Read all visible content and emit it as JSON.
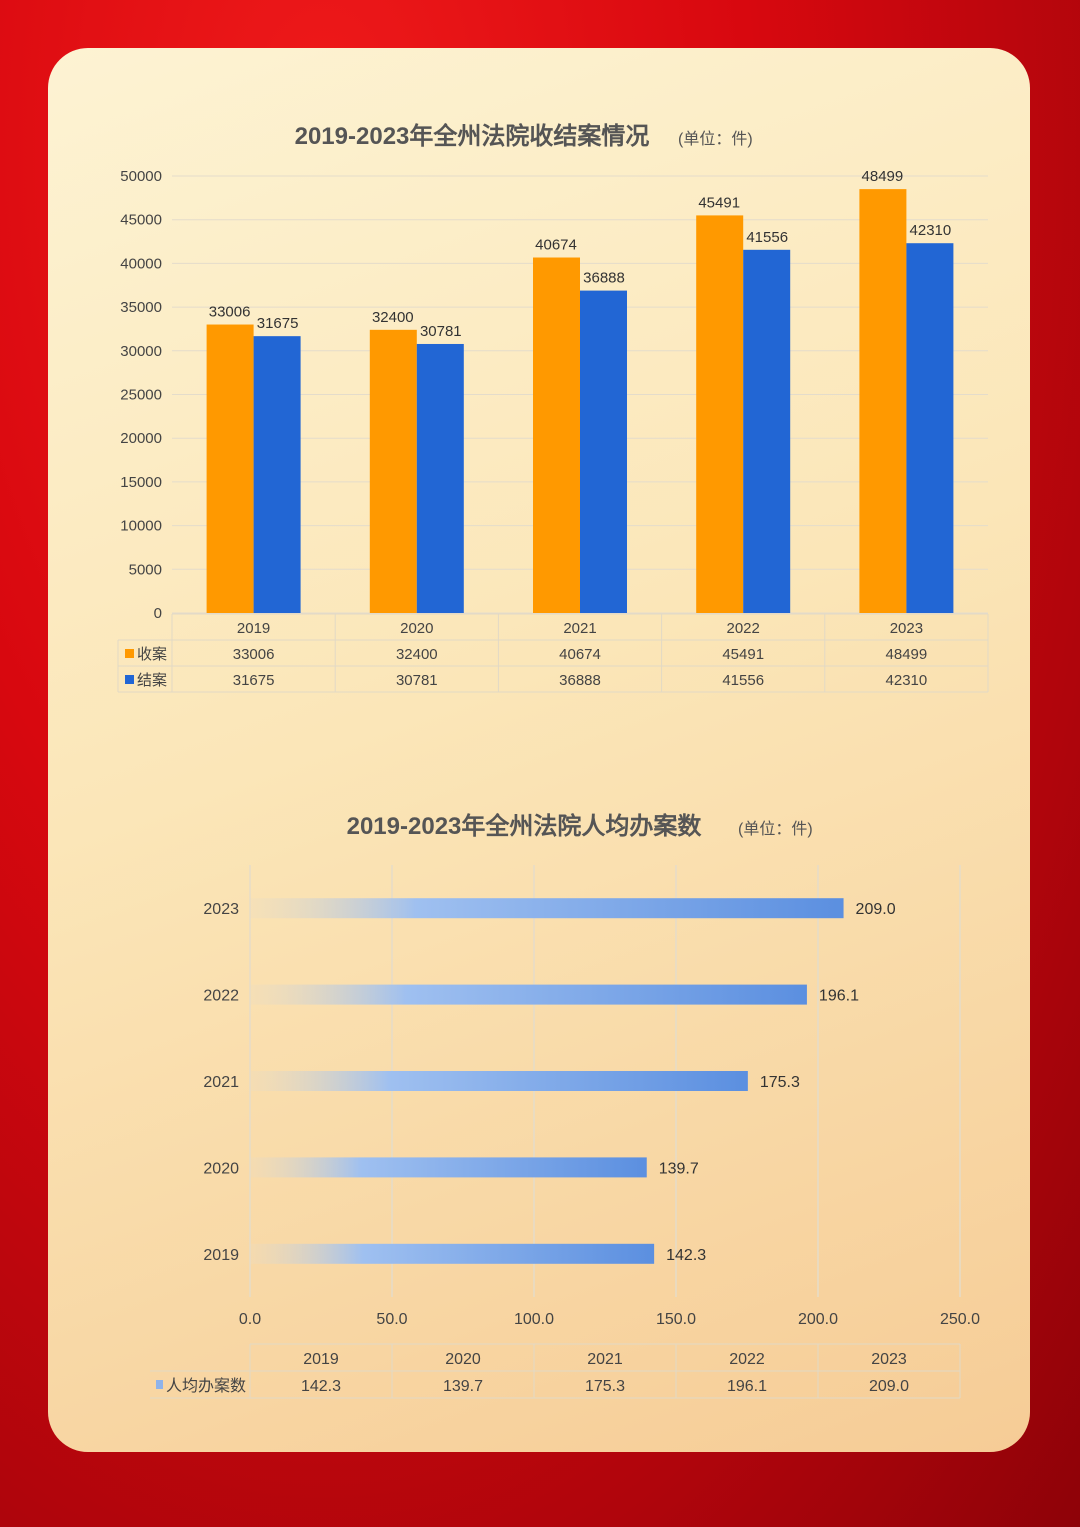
{
  "chart_data": [
    {
      "type": "bar",
      "title": "2019-2023年全州法院收结案情况",
      "unit": "(单位：件)",
      "categories": [
        "2019",
        "2020",
        "2021",
        "2022",
        "2023"
      ],
      "series": [
        {
          "name": "收案",
          "color": "#FF9900",
          "values": [
            33006,
            32400,
            40674,
            45491,
            48499
          ]
        },
        {
          "name": "结案",
          "color": "#2266D4",
          "values": [
            31675,
            30781,
            36888,
            41556,
            42310
          ]
        }
      ],
      "ylim": [
        0,
        50000
      ],
      "yticks": [
        "0",
        "5000",
        "10000",
        "15000",
        "20000",
        "25000",
        "30000",
        "35000",
        "40000",
        "45000",
        "50000"
      ],
      "grid": true,
      "data_table": true
    },
    {
      "type": "bar",
      "orientation": "horizontal",
      "title": "2019-2023年全州法院人均办案数",
      "unit": "(单位：件)",
      "categories": [
        "2019",
        "2020",
        "2021",
        "2022",
        "2023"
      ],
      "series": [
        {
          "name": "人均办案数",
          "color": "#5B8FE0",
          "values": [
            142.3,
            139.7,
            175.3,
            196.1,
            209.0
          ],
          "labels": [
            "142.3",
            "139.7",
            "175.3",
            "196.1",
            "209.0"
          ]
        }
      ],
      "xlim": [
        0,
        250
      ],
      "xticks": [
        "0.0",
        "50.0",
        "100.0",
        "150.0",
        "200.0",
        "250.0"
      ],
      "grid": true,
      "data_table": true
    }
  ]
}
